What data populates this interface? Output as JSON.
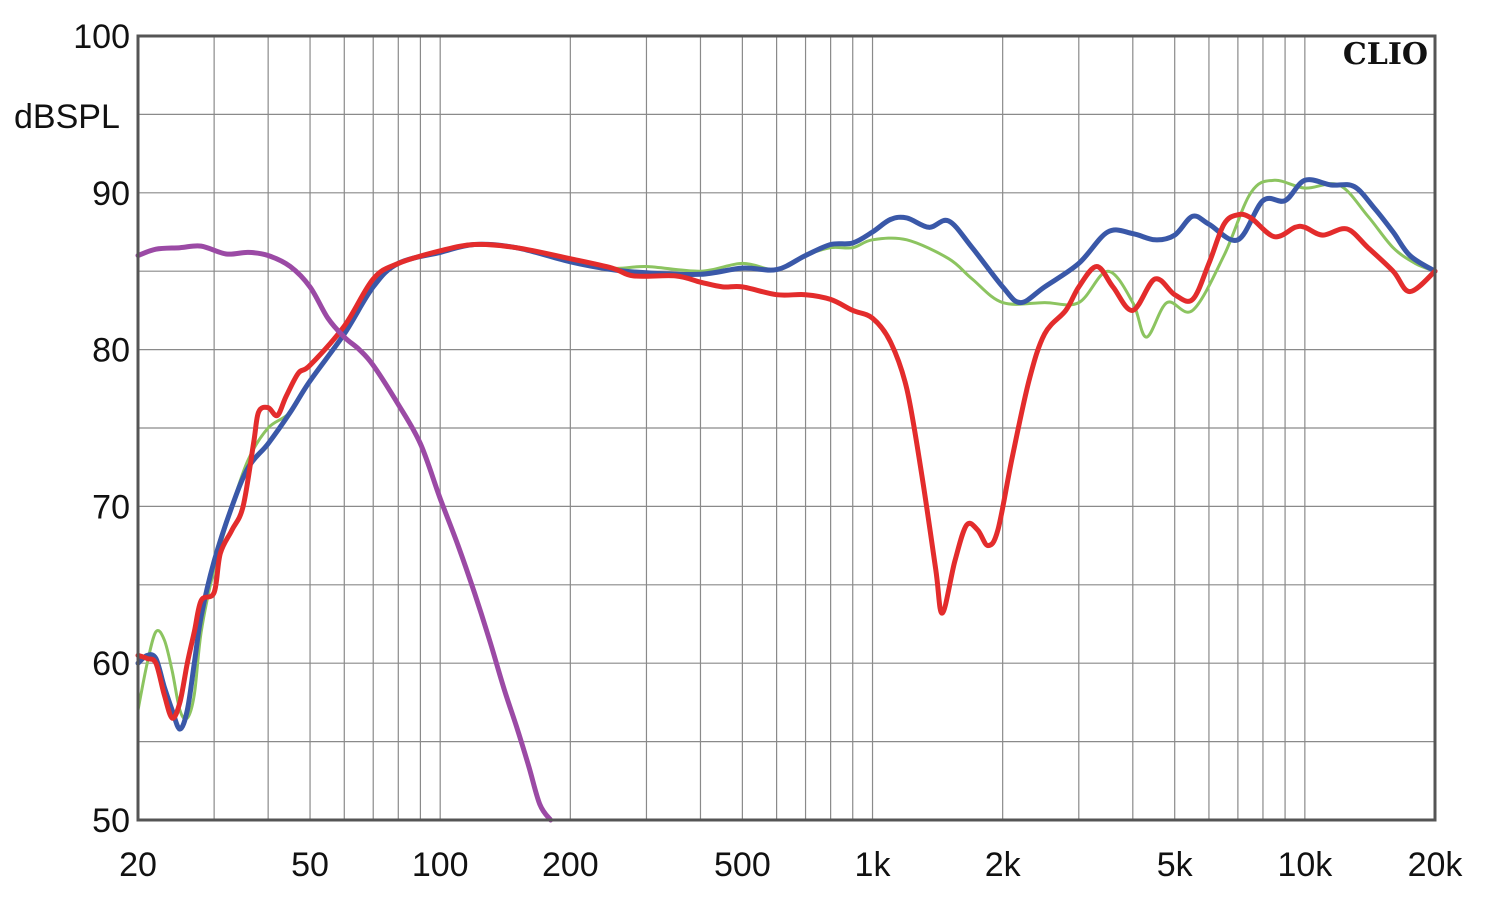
{
  "chart_data": {
    "type": "line",
    "title": "",
    "brand": "CLIO",
    "xlabel": "",
    "ylabel": "dBSPL",
    "xscale": "log",
    "xlim": [
      20,
      20000
    ],
    "ylim": [
      50,
      100
    ],
    "grid": true,
    "legend": "none",
    "x_ticks": [
      {
        "value": 20,
        "label": "20"
      },
      {
        "value": 50,
        "label": "50"
      },
      {
        "value": 100,
        "label": "100"
      },
      {
        "value": 200,
        "label": "200"
      },
      {
        "value": 500,
        "label": "500"
      },
      {
        "value": 1000,
        "label": "1k"
      },
      {
        "value": 2000,
        "label": "2k"
      },
      {
        "value": 5000,
        "label": "5k"
      },
      {
        "value": 10000,
        "label": "10k"
      },
      {
        "value": 20000,
        "label": "20k"
      }
    ],
    "y_ticks": [
      {
        "value": 50,
        "label": "50"
      },
      {
        "value": 60,
        "label": "60"
      },
      {
        "value": 70,
        "label": "70"
      },
      {
        "value": 80,
        "label": "80"
      },
      {
        "value": 90,
        "label": "90"
      },
      {
        "value": 100,
        "label": "100"
      }
    ],
    "series": [
      {
        "color": "#8cc460",
        "width": 3,
        "points": [
          [
            20,
            57
          ],
          [
            21,
            60
          ],
          [
            22,
            62
          ],
          [
            23,
            61.5
          ],
          [
            24,
            59.5
          ],
          [
            25,
            57
          ],
          [
            26,
            56.5
          ],
          [
            27,
            58
          ],
          [
            28,
            62
          ],
          [
            30,
            66
          ],
          [
            33,
            70
          ],
          [
            36,
            73
          ],
          [
            40,
            75
          ],
          [
            45,
            76
          ],
          [
            50,
            78
          ],
          [
            60,
            81
          ],
          [
            70,
            84
          ],
          [
            80,
            85.5
          ],
          [
            100,
            86.2
          ],
          [
            120,
            86.7
          ],
          [
            150,
            86.5
          ],
          [
            200,
            85.8
          ],
          [
            250,
            85.2
          ],
          [
            300,
            85.3
          ],
          [
            400,
            85
          ],
          [
            500,
            85.5
          ],
          [
            600,
            85.1
          ],
          [
            700,
            86
          ],
          [
            800,
            86.5
          ],
          [
            900,
            86.5
          ],
          [
            1000,
            87
          ],
          [
            1200,
            87
          ],
          [
            1500,
            85.8
          ],
          [
            1700,
            84.5
          ],
          [
            2000,
            83
          ],
          [
            2500,
            83
          ],
          [
            3000,
            83
          ],
          [
            3500,
            85
          ],
          [
            4000,
            83
          ],
          [
            4300,
            80.8
          ],
          [
            4800,
            83
          ],
          [
            5500,
            82.5
          ],
          [
            6500,
            86
          ],
          [
            7500,
            90
          ],
          [
            8500,
            90.8
          ],
          [
            10000,
            90.3
          ],
          [
            12000,
            90.5
          ],
          [
            14000,
            88.5
          ],
          [
            16000,
            86.5
          ],
          [
            18000,
            85.5
          ],
          [
            20000,
            85
          ]
        ]
      },
      {
        "color": "#3a58a8",
        "width": 5,
        "points": [
          [
            20,
            60
          ],
          [
            21,
            60.5
          ],
          [
            22,
            60.3
          ],
          [
            23,
            58.5
          ],
          [
            24,
            57
          ],
          [
            25,
            55.8
          ],
          [
            26,
            57
          ],
          [
            27,
            60
          ],
          [
            28,
            63
          ],
          [
            30,
            66.5
          ],
          [
            33,
            70
          ],
          [
            36,
            72.5
          ],
          [
            40,
            74
          ],
          [
            45,
            76
          ],
          [
            50,
            78
          ],
          [
            60,
            81
          ],
          [
            70,
            84
          ],
          [
            80,
            85.5
          ],
          [
            100,
            86.2
          ],
          [
            120,
            86.7
          ],
          [
            150,
            86.5
          ],
          [
            200,
            85.6
          ],
          [
            250,
            85.1
          ],
          [
            300,
            84.9
          ],
          [
            400,
            84.8
          ],
          [
            500,
            85.2
          ],
          [
            600,
            85.1
          ],
          [
            700,
            86
          ],
          [
            800,
            86.7
          ],
          [
            900,
            86.8
          ],
          [
            1000,
            87.5
          ],
          [
            1100,
            88.3
          ],
          [
            1200,
            88.4
          ],
          [
            1350,
            87.8
          ],
          [
            1500,
            88.2
          ],
          [
            1700,
            86.5
          ],
          [
            2000,
            84
          ],
          [
            2200,
            83
          ],
          [
            2500,
            84
          ],
          [
            3000,
            85.5
          ],
          [
            3500,
            87.5
          ],
          [
            4000,
            87.4
          ],
          [
            4500,
            87
          ],
          [
            5000,
            87.3
          ],
          [
            5500,
            88.5
          ],
          [
            6000,
            88
          ],
          [
            7000,
            87
          ],
          [
            8000,
            89.5
          ],
          [
            9000,
            89.5
          ],
          [
            10000,
            90.8
          ],
          [
            11500,
            90.5
          ],
          [
            13000,
            90.4
          ],
          [
            14500,
            89
          ],
          [
            16000,
            87.5
          ],
          [
            17500,
            86
          ],
          [
            20000,
            85
          ]
        ]
      },
      {
        "color": "#e32c2c",
        "width": 5,
        "points": [
          [
            20,
            60.5
          ],
          [
            21,
            60.3
          ],
          [
            22,
            60
          ],
          [
            23,
            58
          ],
          [
            24,
            56.5
          ],
          [
            25,
            57.5
          ],
          [
            26,
            60
          ],
          [
            27,
            62
          ],
          [
            28,
            64
          ],
          [
            30,
            64.5
          ],
          [
            31,
            67
          ],
          [
            33,
            68.5
          ],
          [
            35,
            70
          ],
          [
            37,
            74
          ],
          [
            38,
            76
          ],
          [
            40,
            76.3
          ],
          [
            42,
            75.8
          ],
          [
            44,
            77
          ],
          [
            47,
            78.5
          ],
          [
            50,
            79
          ],
          [
            60,
            81.5
          ],
          [
            70,
            84.5
          ],
          [
            80,
            85.5
          ],
          [
            100,
            86.3
          ],
          [
            120,
            86.7
          ],
          [
            150,
            86.5
          ],
          [
            200,
            85.8
          ],
          [
            250,
            85.2
          ],
          [
            280,
            84.7
          ],
          [
            350,
            84.7
          ],
          [
            400,
            84.3
          ],
          [
            450,
            84
          ],
          [
            500,
            84
          ],
          [
            600,
            83.5
          ],
          [
            700,
            83.5
          ],
          [
            800,
            83.2
          ],
          [
            900,
            82.5
          ],
          [
            1000,
            82
          ],
          [
            1100,
            80.5
          ],
          [
            1200,
            77.5
          ],
          [
            1300,
            72
          ],
          [
            1400,
            66
          ],
          [
            1450,
            63.2
          ],
          [
            1550,
            66.5
          ],
          [
            1650,
            68.8
          ],
          [
            1750,
            68.5
          ],
          [
            1850,
            67.5
          ],
          [
            1950,
            68.5
          ],
          [
            2100,
            73
          ],
          [
            2300,
            78
          ],
          [
            2500,
            81
          ],
          [
            2800,
            82.5
          ],
          [
            3000,
            84
          ],
          [
            3300,
            85.3
          ],
          [
            3600,
            84
          ],
          [
            4000,
            82.5
          ],
          [
            4500,
            84.5
          ],
          [
            5000,
            83.5
          ],
          [
            5500,
            83.2
          ],
          [
            6000,
            85.5
          ],
          [
            6500,
            88
          ],
          [
            7000,
            88.6
          ],
          [
            7500,
            88.4
          ],
          [
            8500,
            87.2
          ],
          [
            9500,
            87.8
          ],
          [
            10000,
            87.8
          ],
          [
            11000,
            87.3
          ],
          [
            12500,
            87.7
          ],
          [
            14000,
            86.5
          ],
          [
            16000,
            85
          ],
          [
            17500,
            83.7
          ],
          [
            20000,
            85
          ]
        ]
      },
      {
        "color": "#9b4aa5",
        "width": 5,
        "points": [
          [
            20,
            86
          ],
          [
            22,
            86.4
          ],
          [
            25,
            86.5
          ],
          [
            28,
            86.6
          ],
          [
            32,
            86.1
          ],
          [
            36,
            86.2
          ],
          [
            40,
            86
          ],
          [
            45,
            85.3
          ],
          [
            50,
            84
          ],
          [
            55,
            82
          ],
          [
            60,
            80.8
          ],
          [
            65,
            80
          ],
          [
            70,
            79
          ],
          [
            80,
            76.5
          ],
          [
            90,
            74
          ],
          [
            100,
            70.5
          ],
          [
            110,
            67.5
          ],
          [
            120,
            64.5
          ],
          [
            130,
            61.5
          ],
          [
            140,
            58.5
          ],
          [
            150,
            56
          ],
          [
            160,
            53.5
          ],
          [
            170,
            51
          ],
          [
            180,
            49.5
          ]
        ]
      }
    ]
  }
}
